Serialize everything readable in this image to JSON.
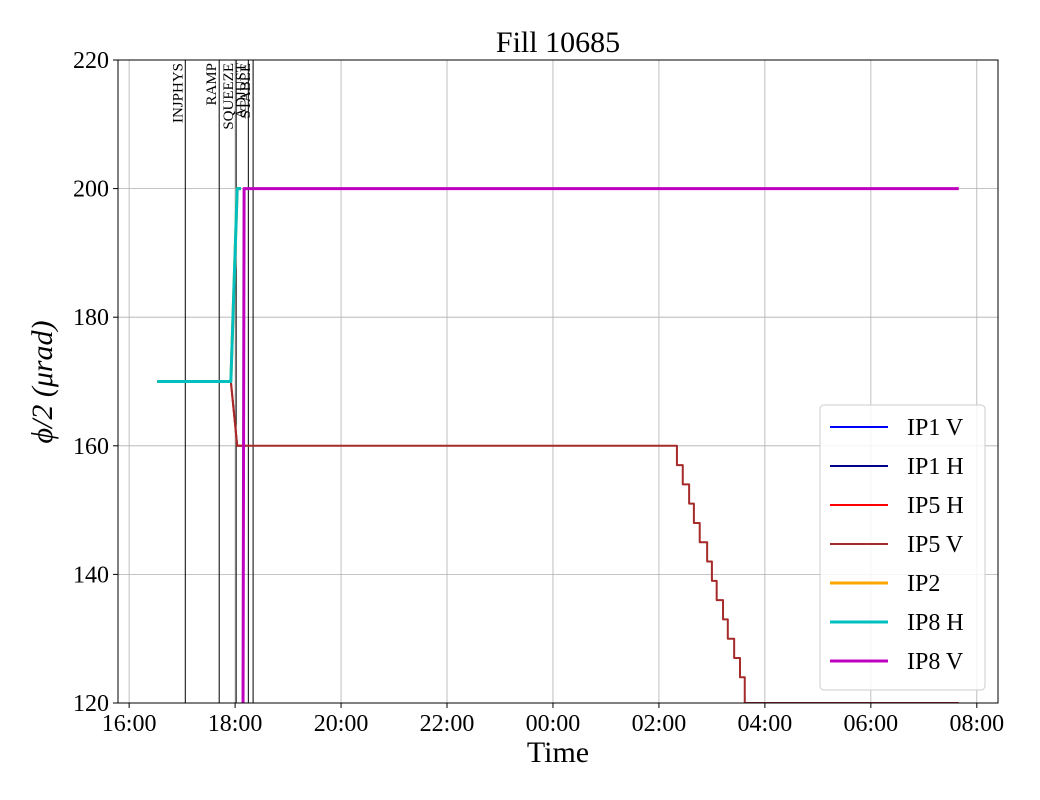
{
  "chart_data": {
    "type": "line",
    "title": "Fill 10685",
    "x_label": "Time",
    "y_label": "ϕ/2 (μrad)",
    "xlim": [
      15.79,
      32.4
    ],
    "ylim": [
      120,
      220
    ],
    "xticks": [
      {
        "value": 16,
        "label": "16:00"
      },
      {
        "value": 18,
        "label": "18:00"
      },
      {
        "value": 20,
        "label": "20:00"
      },
      {
        "value": 22,
        "label": "22:00"
      },
      {
        "value": 24,
        "label": "00:00"
      },
      {
        "value": 26,
        "label": "02:00"
      },
      {
        "value": 28,
        "label": "04:00"
      },
      {
        "value": 30,
        "label": "06:00"
      },
      {
        "value": 32,
        "label": "08:00"
      }
    ],
    "yticks": [
      120,
      140,
      160,
      180,
      200,
      220
    ],
    "grid": true,
    "legend": "lower right",
    "phases": [
      {
        "name": "INJPHYS",
        "x": 17.06
      },
      {
        "name": "RAMP",
        "x": 17.7
      },
      {
        "name": "SQUEEZE",
        "x": 18.02
      },
      {
        "name": "ADJUST",
        "x": 18.25
      },
      {
        "name": "STABLE",
        "x": 18.34
      }
    ],
    "series": [
      {
        "name": "IP1 V",
        "color": "#0000ff",
        "linewidth": 2,
        "x": [
          16.53,
          17.92,
          18.04,
          18.11
        ],
        "values": [
          170,
          170,
          200,
          200
        ]
      },
      {
        "name": "IP1 H",
        "color": "#00008b",
        "linewidth": 2,
        "x": [
          16.53,
          17.92,
          18.04,
          18.11
        ],
        "values": [
          170,
          170,
          200,
          200
        ]
      },
      {
        "name": "IP5 H",
        "color": "#ff0000",
        "linewidth": 2,
        "x": [
          16.53,
          17.92,
          18.04,
          18.2
        ],
        "values": [
          170,
          170,
          160,
          160
        ]
      },
      {
        "name": "IP5 V",
        "color": "#a52a2a",
        "linewidth": 2,
        "x": [
          16.53,
          17.92,
          18.04,
          26.34,
          26.34,
          26.45,
          26.45,
          26.57,
          26.57,
          26.66,
          26.66,
          26.77,
          26.77,
          26.91,
          26.91,
          27.0,
          27.0,
          27.09,
          27.09,
          27.21,
          27.21,
          27.3,
          27.3,
          27.42,
          27.42,
          27.53,
          27.53,
          27.62,
          27.62,
          31.66
        ],
        "values": [
          170,
          170,
          160,
          160,
          157,
          157,
          154,
          154,
          151,
          151,
          148,
          148,
          145,
          145,
          142,
          142,
          139,
          139,
          136,
          136,
          133,
          133,
          130,
          130,
          127,
          127,
          124,
          124,
          120,
          120
        ]
      },
      {
        "name": "IP2",
        "color": "#ffa500",
        "linewidth": 3,
        "x": [
          16.53,
          17.92,
          18.04,
          18.11
        ],
        "values": [
          170,
          170,
          200,
          200
        ]
      },
      {
        "name": "IP8 H",
        "color": "#00bfbf",
        "linewidth": 3,
        "x": [
          16.53,
          17.92,
          18.04,
          18.11
        ],
        "values": [
          170,
          170,
          200,
          200
        ]
      },
      {
        "name": "IP8 V",
        "color": "#bf00bf",
        "linewidth": 3,
        "x": [
          18.15,
          18.17,
          31.66
        ],
        "values": [
          120,
          200,
          200
        ]
      }
    ]
  }
}
